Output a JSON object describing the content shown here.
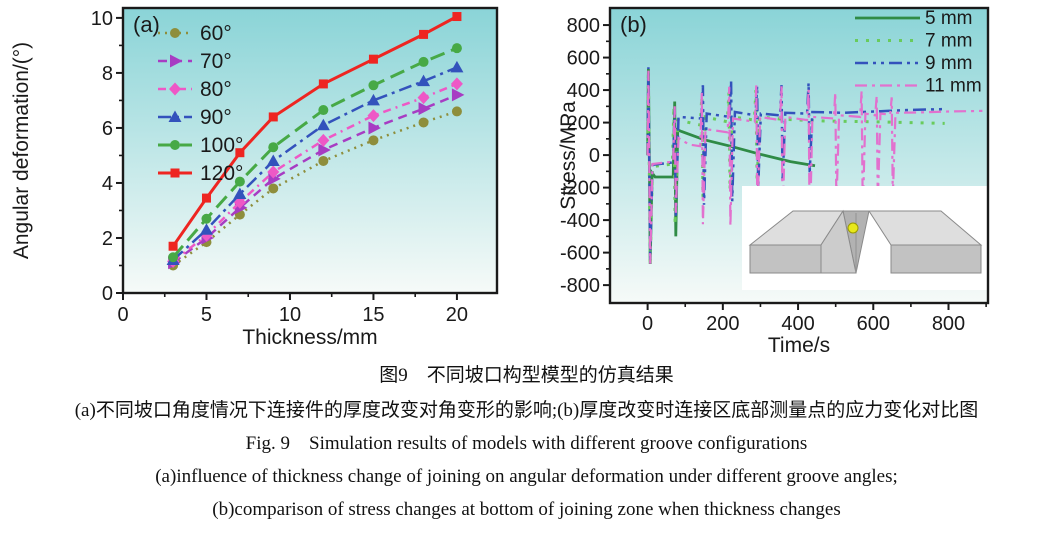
{
  "figure_captions": {
    "caption_zh_title": "图9　不同坡口构型模型的仿真结果",
    "caption_zh_sub": "(a)不同坡口角度情况下连接件的厚度改变对角变形的影响;(b)厚度改变时连接区底部测量点的应力变化对比图",
    "caption_en_title": "Fig. 9　Simulation results of models with different groove configurations",
    "caption_en_a": "(a)influence of thickness change of joining on angular deformation under different groove angles;",
    "caption_en_b": "(b)comparison of stress changes at bottom of joining zone when thickness changes"
  },
  "chart_data": [
    {
      "id": "a",
      "type": "line",
      "panel_label": "(a)",
      "xlabel": "Thickness/mm",
      "ylabel": "Angular deformation/(°)",
      "xlim": [
        0,
        22.4
      ],
      "ylim": [
        0,
        10.36
      ],
      "xticks": [
        0,
        5,
        10,
        15,
        20
      ],
      "xticks_minor": [
        2.5,
        7.5,
        12.5,
        17.5
      ],
      "yticks": [
        0,
        2,
        4,
        6,
        8,
        10
      ],
      "yticks_minor": [
        1,
        3,
        5,
        7,
        9
      ],
      "background_gradient": [
        "#8ad4d7",
        "#f6faf8"
      ],
      "legend_position": "top-left",
      "x": [
        3,
        5,
        7,
        9,
        12,
        15,
        18,
        20
      ],
      "series": [
        {
          "name": "60°",
          "color": "#8e8e3c",
          "dash": "2 5",
          "width": 2.5,
          "marker": "circle",
          "values": [
            1.0,
            1.85,
            2.85,
            3.8,
            4.8,
            5.55,
            6.2,
            6.6
          ]
        },
        {
          "name": "70°",
          "color": "#a73cc3",
          "dash": "9 6",
          "width": 2.5,
          "marker": "triangle-right",
          "values": [
            1.1,
            2.0,
            3.1,
            4.15,
            5.2,
            6.0,
            6.7,
            7.2
          ]
        },
        {
          "name": "80°",
          "color": "#ee58c6",
          "dash": "8 5 2 5",
          "width": 2.5,
          "marker": "diamond",
          "values": [
            1.15,
            2.1,
            3.3,
            4.4,
            5.55,
            6.45,
            7.1,
            7.6
          ]
        },
        {
          "name": "90°",
          "color": "#3352bc",
          "dash": "13 5 3 5",
          "width": 2.5,
          "marker": "triangle-up",
          "values": [
            1.2,
            2.3,
            3.6,
            4.8,
            6.1,
            7.0,
            7.7,
            8.2
          ]
        },
        {
          "name": "100°",
          "color": "#47a946",
          "dash": "15 7",
          "width": 3,
          "marker": "circle",
          "values": [
            1.3,
            2.7,
            4.05,
            5.3,
            6.65,
            7.55,
            8.4,
            8.9
          ]
        },
        {
          "name": "120°",
          "color": "#ee2521",
          "dash": "",
          "width": 3,
          "marker": "square",
          "values": [
            1.7,
            3.45,
            5.1,
            6.4,
            7.6,
            8.5,
            9.4,
            10.05
          ]
        }
      ]
    },
    {
      "id": "b",
      "type": "line",
      "panel_label": "(b)",
      "xlabel": "Time/s",
      "ylabel": "Stress/MPa",
      "xlim": [
        -100,
        905
      ],
      "ylim": [
        -910,
        905
      ],
      "xticks": [
        0,
        200,
        400,
        600,
        800
      ],
      "xticks_minor": [
        100,
        300,
        500,
        700,
        900
      ],
      "yticks": [
        -800,
        -600,
        -400,
        -200,
        0,
        200,
        400,
        600,
        800
      ],
      "yticks_minor": [
        -700,
        -500,
        -300,
        -100,
        100,
        300,
        500,
        700
      ],
      "background_gradient": [
        "#8ad4d7",
        "#f6faf8"
      ],
      "legend_position": "top-right",
      "inset_description": "3D model of joined plates with central V-groove; yellow dot marks stress measurement point at bottom of joining zone",
      "series": [
        {
          "name": "5 mm",
          "color": "#2f8b46",
          "dash": "",
          "width": 2.8,
          "points": [
            [
              0,
              0
            ],
            [
              2,
              530
            ],
            [
              5,
              -120
            ],
            [
              7,
              -670
            ],
            [
              12,
              -110
            ],
            [
              20,
              -135
            ],
            [
              68,
              -135
            ],
            [
              72,
              330
            ],
            [
              75,
              -500
            ],
            [
              80,
              155
            ],
            [
              90,
              145
            ],
            [
              150,
              95
            ],
            [
              220,
              55
            ],
            [
              300,
              5
            ],
            [
              380,
              -40
            ],
            [
              445,
              -65
            ]
          ]
        },
        {
          "name": "7 mm",
          "color": "#69cb5c",
          "dash": "3 8",
          "width": 3,
          "points": [
            [
              0,
              0
            ],
            [
              2,
              520
            ],
            [
              7,
              -655
            ],
            [
              13,
              -70
            ],
            [
              66,
              -55
            ],
            [
              70,
              300
            ],
            [
              73,
              -430
            ],
            [
              80,
              215
            ],
            [
              140,
              185
            ],
            [
              144,
              360
            ],
            [
              147,
              -260
            ],
            [
              153,
              235
            ],
            [
              212,
              205
            ],
            [
              216,
              385
            ],
            [
              219,
              -215
            ],
            [
              226,
              235
            ],
            [
              284,
              215
            ],
            [
              288,
              400
            ],
            [
              291,
              -160
            ],
            [
              298,
              235
            ],
            [
              360,
              220
            ],
            [
              470,
              210
            ],
            [
              600,
              205
            ],
            [
              700,
              200
            ],
            [
              790,
              195
            ]
          ]
        },
        {
          "name": "9 mm",
          "color": "#3352bc",
          "dash": "13 5 3 5 3 5",
          "width": 2.5,
          "points": [
            [
              0,
              0
            ],
            [
              2,
              540
            ],
            [
              7,
              -645
            ],
            [
              13,
              -60
            ],
            [
              68,
              -45
            ],
            [
              72,
              285
            ],
            [
              75,
              -385
            ],
            [
              82,
              235
            ],
            [
              143,
              225
            ],
            [
              147,
              430
            ],
            [
              150,
              -305
            ],
            [
              157,
              255
            ],
            [
              218,
              235
            ],
            [
              222,
              455
            ],
            [
              225,
              -285
            ],
            [
              232,
              265
            ],
            [
              287,
              245
            ],
            [
              291,
              425
            ],
            [
              294,
              -205
            ],
            [
              301,
              255
            ],
            [
              352,
              245
            ],
            [
              356,
              430
            ],
            [
              359,
              -155
            ],
            [
              366,
              260
            ],
            [
              424,
              255
            ],
            [
              428,
              445
            ],
            [
              431,
              -105
            ],
            [
              438,
              265
            ],
            [
              520,
              260
            ],
            [
              620,
              270
            ],
            [
              700,
              278
            ],
            [
              790,
              283
            ]
          ]
        },
        {
          "name": "11 mm",
          "color": "#e271ce",
          "dash": "12 5 3 5",
          "width": 2.2,
          "points": [
            [
              0,
              0
            ],
            [
              2,
              520
            ],
            [
              7,
              -668
            ],
            [
              13,
              -55
            ],
            [
              68,
              -40
            ],
            [
              72,
              300
            ],
            [
              75,
              -355
            ],
            [
              82,
              105
            ],
            [
              110,
              65
            ],
            [
              140,
              55
            ],
            [
              144,
              385
            ],
            [
              147,
              -425
            ],
            [
              154,
              160
            ],
            [
              213,
              140
            ],
            [
              217,
              420
            ],
            [
              220,
              -435
            ],
            [
              227,
              225
            ],
            [
              285,
              205
            ],
            [
              289,
              430
            ],
            [
              292,
              -385
            ],
            [
              299,
              235
            ],
            [
              352,
              215
            ],
            [
              356,
              425
            ],
            [
              359,
              -405
            ],
            [
              366,
              235
            ],
            [
              424,
              215
            ],
            [
              428,
              405
            ],
            [
              431,
              -525
            ],
            [
              438,
              235
            ],
            [
              495,
              225
            ],
            [
              499,
              385
            ],
            [
              502,
              -305
            ],
            [
              509,
              245
            ],
            [
              565,
              235
            ],
            [
              569,
              395
            ],
            [
              572,
              -355
            ],
            [
              579,
              255
            ],
            [
              605,
              245
            ],
            [
              609,
              365
            ],
            [
              612,
              -285
            ],
            [
              619,
              255
            ],
            [
              645,
              250
            ],
            [
              649,
              355
            ],
            [
              652,
              -255
            ],
            [
              659,
              260
            ],
            [
              720,
              262
            ],
            [
              800,
              268
            ],
            [
              890,
              272
            ]
          ]
        }
      ]
    }
  ]
}
